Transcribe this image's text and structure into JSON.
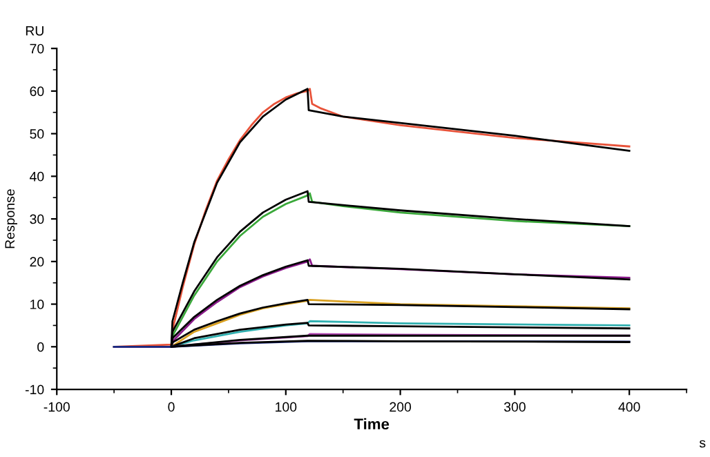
{
  "chart_data": {
    "type": "line",
    "xlabel": "Time",
    "ylabel": "Response",
    "annotations": [
      "RU",
      "s"
    ],
    "xlim": [
      -100,
      450
    ],
    "xticks": [
      -100,
      0,
      100,
      200,
      300,
      400
    ],
    "ylim": [
      -10,
      70
    ],
    "yticks": [
      -10,
      0,
      10,
      20,
      30,
      40,
      50,
      60,
      70
    ],
    "grid": false,
    "legend": false,
    "marker": "none",
    "line_style": "solid",
    "series": [
      {
        "color": "#e8533a",
        "x": [
          -50,
          0,
          2,
          10,
          20,
          30,
          40,
          50,
          60,
          70,
          80,
          90,
          100,
          110,
          119,
          121,
          123,
          130,
          150,
          200,
          250,
          300,
          350,
          400
        ],
        "values": [
          0,
          0.5,
          5,
          14,
          24,
          32,
          39,
          44,
          48.5,
          52,
          55,
          57,
          58.5,
          59.5,
          60,
          60.5,
          57,
          56,
          54,
          52,
          50.5,
          49,
          48,
          47
        ]
      },
      {
        "color": "#000000",
        "x": [
          0,
          1,
          10,
          20,
          40,
          60,
          80,
          100,
          119,
          120,
          150,
          200,
          300,
          400
        ],
        "values": [
          0,
          6,
          15,
          24.5,
          38.5,
          48,
          54,
          58,
          60.5,
          55.5,
          54,
          52.5,
          49.5,
          46
        ]
      },
      {
        "color": "#3aa83a",
        "x": [
          -50,
          0,
          2,
          20,
          40,
          60,
          80,
          100,
          119,
          121,
          123,
          150,
          200,
          300,
          400
        ],
        "values": [
          0,
          0,
          3,
          12,
          20,
          26,
          30.5,
          33.5,
          35.5,
          36,
          34,
          33,
          31.5,
          29.5,
          28.3
        ]
      },
      {
        "color": "#000000",
        "x": [
          0,
          1,
          20,
          40,
          60,
          80,
          100,
          119,
          120,
          200,
          300,
          400
        ],
        "values": [
          0,
          3.5,
          13,
          21,
          27,
          31.5,
          34.5,
          36.5,
          34,
          32,
          30,
          28.3
        ]
      },
      {
        "color": "#8b1a8b",
        "x": [
          -50,
          0,
          2,
          20,
          40,
          60,
          80,
          100,
          119,
          121,
          123,
          200,
          300,
          400
        ],
        "values": [
          0,
          0,
          1.5,
          6.5,
          10.5,
          14,
          16.5,
          18.5,
          20,
          20.5,
          19,
          18.2,
          17,
          16.2
        ]
      },
      {
        "color": "#000000",
        "x": [
          0,
          1,
          20,
          40,
          60,
          80,
          100,
          119,
          120,
          200,
          300,
          400
        ],
        "values": [
          0,
          2,
          7,
          11,
          14.3,
          16.8,
          18.8,
          20.3,
          19,
          18.3,
          17,
          15.8
        ]
      },
      {
        "color": "#d9a020",
        "x": [
          -50,
          0,
          20,
          40,
          60,
          80,
          100,
          119,
          121,
          200,
          300,
          400
        ],
        "values": [
          0,
          0,
          3.5,
          5.5,
          7.5,
          9,
          10,
          10.8,
          11,
          10,
          9.5,
          9
        ]
      },
      {
        "color": "#000000",
        "x": [
          0,
          1,
          20,
          40,
          60,
          80,
          100,
          119,
          120,
          200,
          300,
          400
        ],
        "values": [
          0,
          1,
          4,
          6,
          7.8,
          9.2,
          10.2,
          11,
          10,
          9.8,
          9.3,
          8.8
        ]
      },
      {
        "color": "#30b0b0",
        "x": [
          -50,
          0,
          20,
          60,
          100,
          119,
          121,
          200,
          400
        ],
        "values": [
          0,
          0,
          1.5,
          3.5,
          5,
          5.5,
          6,
          5.5,
          5
        ]
      },
      {
        "color": "#000000",
        "x": [
          0,
          20,
          60,
          100,
          119,
          120,
          200,
          400
        ],
        "values": [
          0,
          2,
          4,
          5.2,
          5.6,
          5,
          4.8,
          4.3
        ]
      },
      {
        "color": "#b040b0",
        "x": [
          -50,
          0,
          60,
          119,
          121,
          200,
          400
        ],
        "values": [
          0,
          0,
          1.5,
          2.5,
          3,
          2.8,
          2.6
        ]
      },
      {
        "color": "#000000",
        "x": [
          0,
          60,
          119,
          120,
          200,
          400
        ],
        "values": [
          0,
          1.6,
          2.6,
          2.6,
          2.6,
          2.6
        ]
      },
      {
        "color": "#1a2a80",
        "x": [
          -50,
          0,
          60,
          119,
          200,
          400
        ],
        "values": [
          0,
          0,
          0.8,
          1.3,
          1.3,
          1.2
        ]
      },
      {
        "color": "#000000",
        "x": [
          0,
          60,
          119,
          200,
          400
        ],
        "values": [
          0,
          0.9,
          1.4,
          1.3,
          1.1
        ]
      }
    ]
  }
}
